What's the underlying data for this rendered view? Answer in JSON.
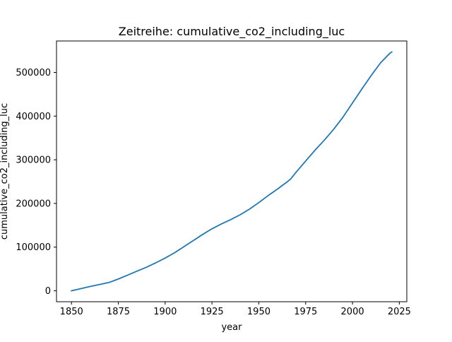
{
  "chart_data": {
    "type": "line",
    "title": "Zeitreihe: cumulative_co2_including_luc",
    "xlabel": "year",
    "ylabel": "cumulative_co2_including_luc",
    "xlim": [
      1842,
      2029
    ],
    "ylim": [
      -25000,
      572000
    ],
    "x_ticks": [
      1850,
      1875,
      1900,
      1925,
      1950,
      1975,
      2000,
      2025
    ],
    "y_ticks": [
      0,
      100000,
      200000,
      300000,
      400000,
      500000
    ],
    "grid": false,
    "series": [
      {
        "color": "#1f77b4",
        "x": [
          1850,
          1855,
          1860,
          1865,
          1870,
          1875,
          1880,
          1885,
          1890,
          1895,
          1900,
          1905,
          1910,
          1915,
          1920,
          1925,
          1930,
          1935,
          1940,
          1945,
          1950,
          1955,
          1960,
          1965,
          1967,
          1970,
          1975,
          1980,
          1985,
          1990,
          1995,
          2000,
          2005,
          2010,
          2015,
          2020,
          2021
        ],
        "y": [
          0,
          5000,
          10000,
          14500,
          19000,
          27000,
          36000,
          45000,
          54000,
          64000,
          75000,
          87000,
          101000,
          115000,
          129000,
          142000,
          153000,
          163000,
          174000,
          187000,
          202000,
          218000,
          233000,
          249000,
          256000,
          272000,
          297000,
          322000,
          345000,
          370000,
          398000,
          430000,
          462000,
          493000,
          522000,
          544000,
          547000
        ]
      }
    ]
  }
}
